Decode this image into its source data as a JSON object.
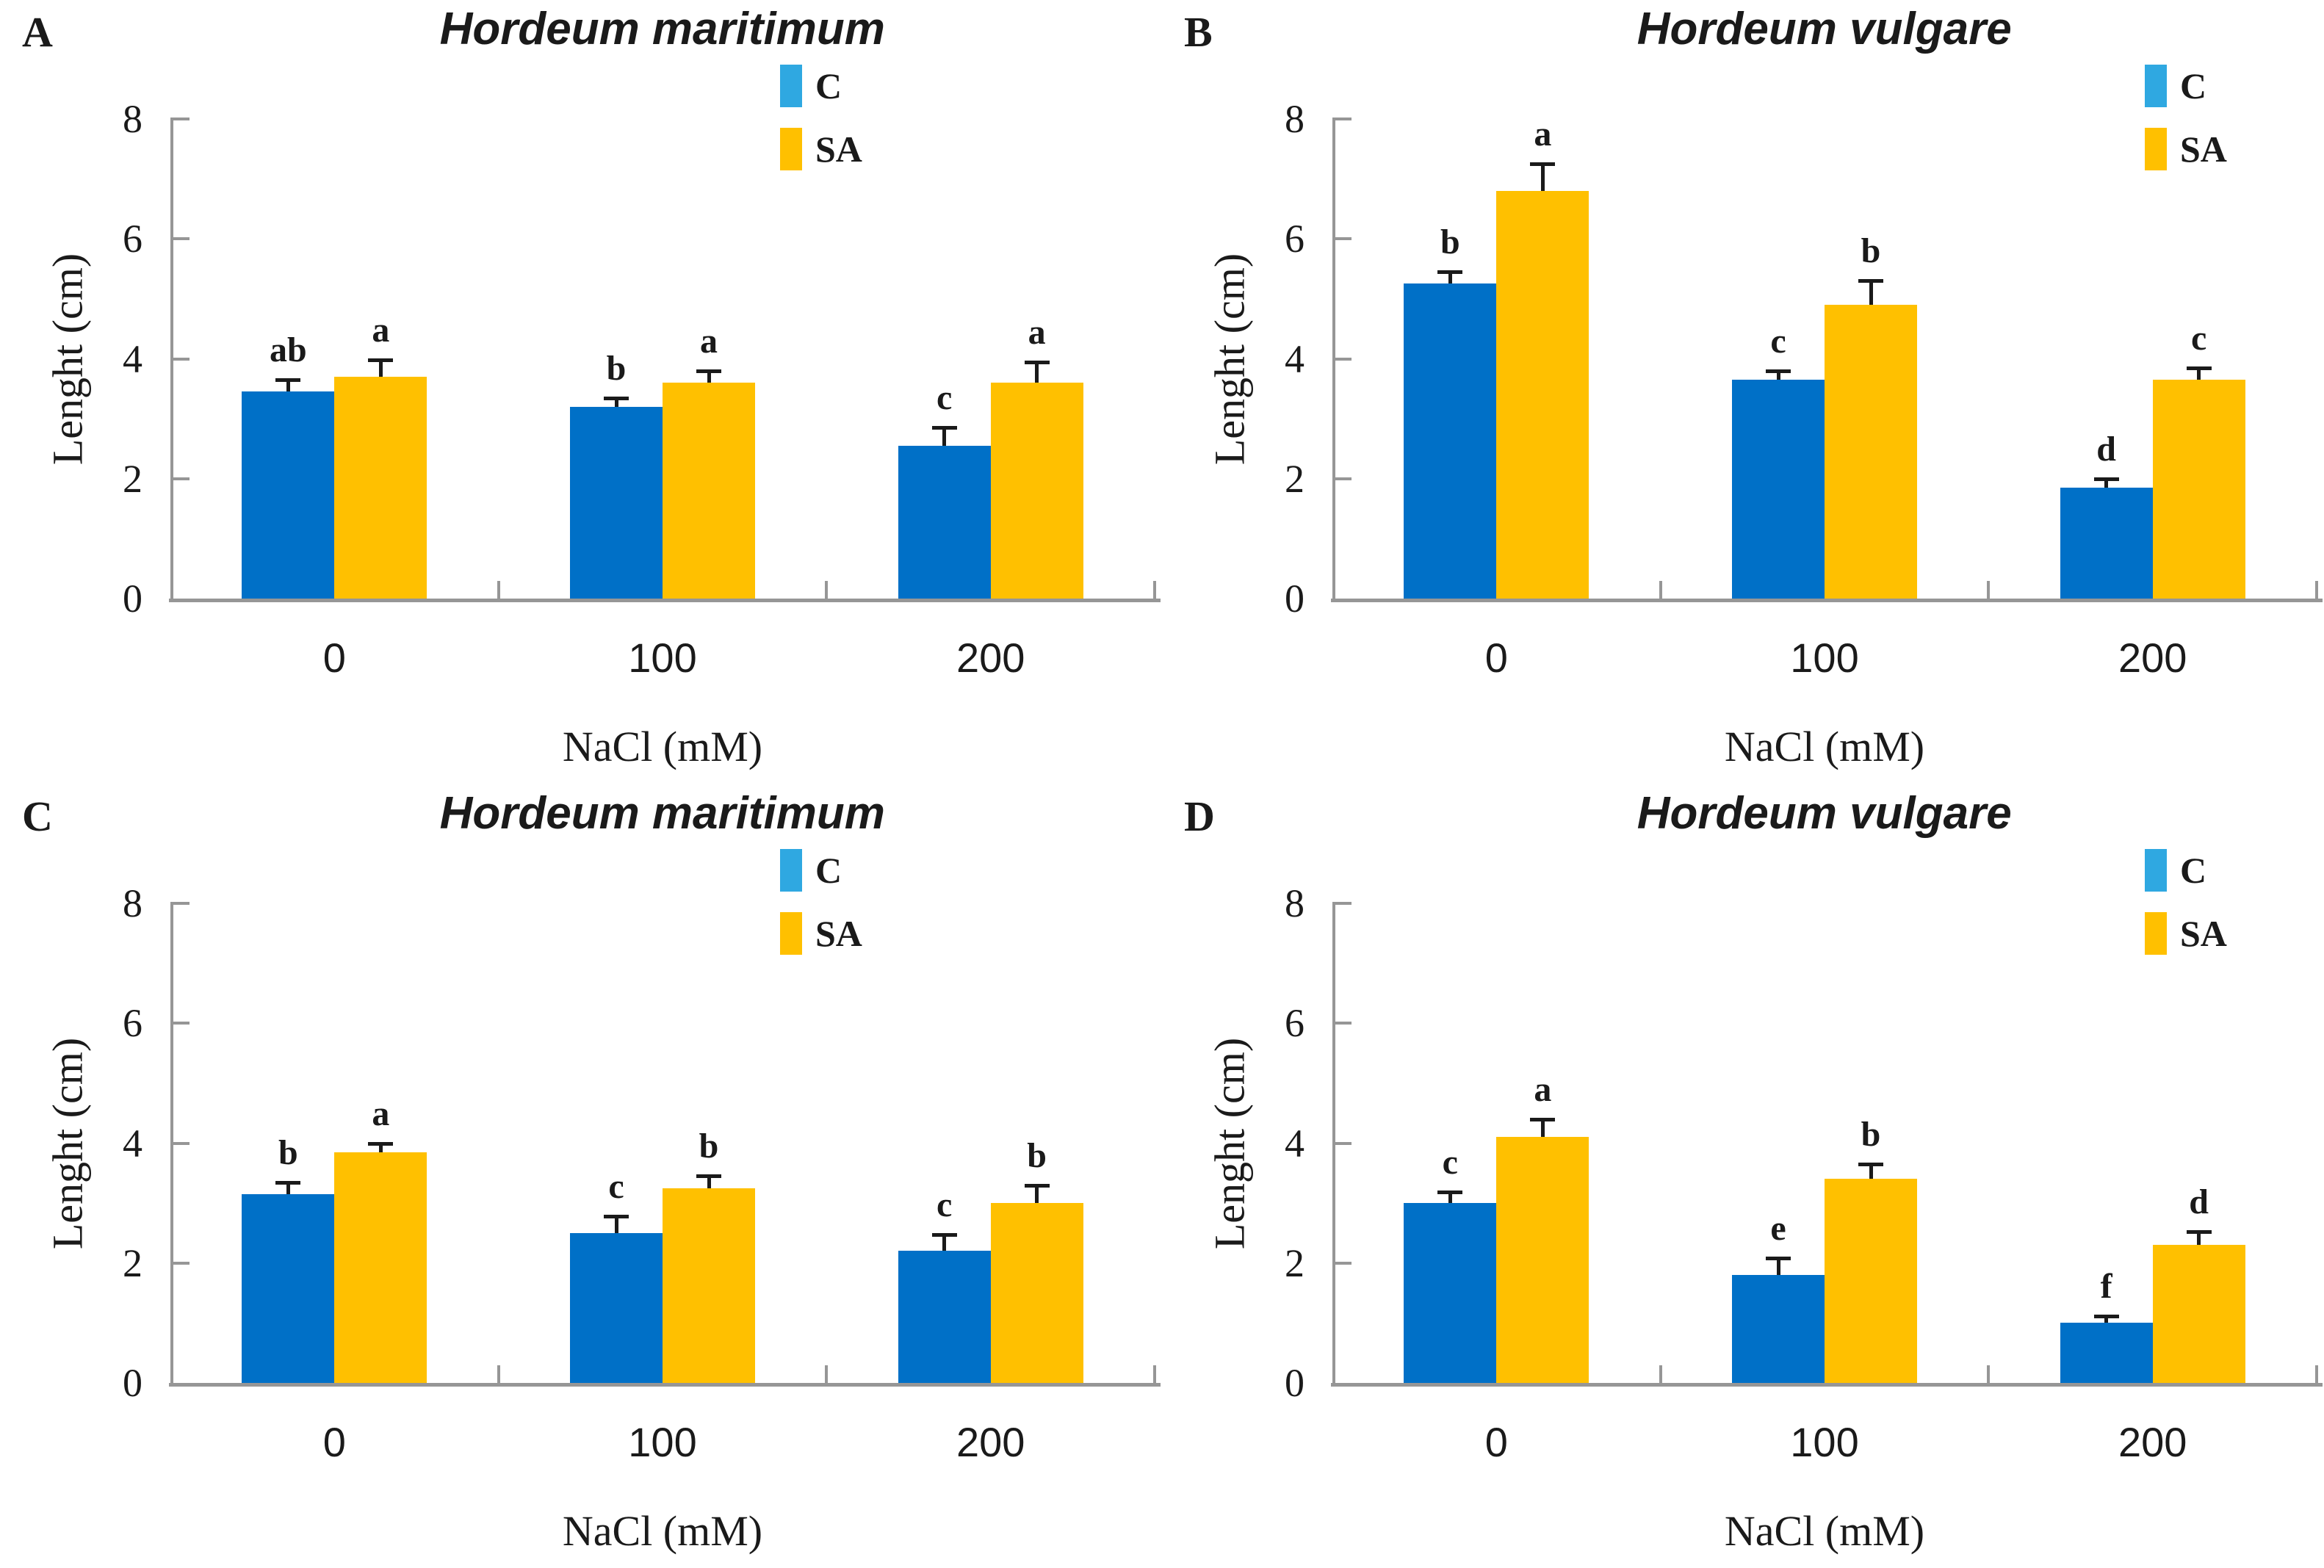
{
  "figure": {
    "description": "Four-panel grouped bar figure comparing shoot/root length of two barley species under NaCl treatments with and without salicylic acid"
  },
  "colors": {
    "bar_c": "#0070C7",
    "bar_sa": "#FFC000",
    "legend_c": "#2FA8E1",
    "legend_sa": "#FFC000",
    "axis": "#969696",
    "error_bar": "#1a1a1a",
    "text": "#1a1a1a"
  },
  "legend": {
    "items": [
      {
        "label": "C",
        "color": "#2FA8E1"
      },
      {
        "label": "SA",
        "color": "#FFC000"
      }
    ]
  },
  "chart_data": [
    {
      "panel_label": "A",
      "type": "bar",
      "title": "Hordeum maritimum",
      "xlabel": "NaCl (mM)",
      "ylabel": "Lenght (cm)",
      "ylim": [
        0,
        8
      ],
      "yticks": [
        0,
        2,
        4,
        6,
        8
      ],
      "categories": [
        "0",
        "100",
        "200"
      ],
      "grid": false,
      "legend_position": "top-right",
      "series": [
        {
          "name": "C",
          "color": "#0070C7",
          "values": [
            3.45,
            3.2,
            2.55
          ],
          "errors": [
            0.2,
            0.15,
            0.3
          ],
          "sig_letters": [
            "ab",
            "b",
            "c"
          ]
        },
        {
          "name": "SA",
          "color": "#FFC000",
          "values": [
            3.7,
            3.6,
            3.6
          ],
          "errors": [
            0.28,
            0.2,
            0.35
          ],
          "sig_letters": [
            "a",
            "a",
            "a"
          ]
        }
      ]
    },
    {
      "panel_label": "B",
      "type": "bar",
      "title": "Hordeum vulgare",
      "xlabel": "NaCl (mM)",
      "ylabel": "Lenght (cm)",
      "ylim": [
        0,
        8
      ],
      "yticks": [
        0,
        2,
        4,
        6,
        8
      ],
      "categories": [
        "0",
        "100",
        "200"
      ],
      "grid": false,
      "legend_position": "top-right",
      "series": [
        {
          "name": "C",
          "color": "#0070C7",
          "values": [
            5.25,
            3.65,
            1.85
          ],
          "errors": [
            0.2,
            0.15,
            0.15
          ],
          "sig_letters": [
            "b",
            "c",
            "d"
          ]
        },
        {
          "name": "SA",
          "color": "#FFC000",
          "values": [
            6.8,
            4.9,
            3.65
          ],
          "errors": [
            0.45,
            0.4,
            0.2
          ],
          "sig_letters": [
            "a",
            "b",
            "c"
          ]
        }
      ]
    },
    {
      "panel_label": "C",
      "type": "bar",
      "title": "Hordeum maritimum",
      "xlabel": "NaCl (mM)",
      "ylabel": "Lenght (cm)",
      "ylim": [
        0,
        8
      ],
      "yticks": [
        0,
        2,
        4,
        6,
        8
      ],
      "categories": [
        "0",
        "100",
        "200"
      ],
      "grid": false,
      "legend_position": "top-right",
      "series": [
        {
          "name": "C",
          "color": "#0070C7",
          "values": [
            3.15,
            2.5,
            2.2
          ],
          "errors": [
            0.2,
            0.28,
            0.28
          ],
          "sig_letters": [
            "b",
            "c",
            "c"
          ]
        },
        {
          "name": "SA",
          "color": "#FFC000",
          "values": [
            3.85,
            3.25,
            3.0
          ],
          "errors": [
            0.15,
            0.2,
            0.3
          ],
          "sig_letters": [
            "a",
            "b",
            "b"
          ]
        }
      ]
    },
    {
      "panel_label": "D",
      "type": "bar",
      "title": "Hordeum vulgare",
      "xlabel": "NaCl (mM)",
      "ylabel": "Lenght (cm)",
      "ylim": [
        0,
        8
      ],
      "yticks": [
        0,
        2,
        4,
        6,
        8
      ],
      "categories": [
        "0",
        "100",
        "200"
      ],
      "grid": false,
      "legend_position": "top-right",
      "series": [
        {
          "name": "C",
          "color": "#0070C7",
          "values": [
            3.0,
            1.8,
            1.0
          ],
          "errors": [
            0.18,
            0.28,
            0.12
          ],
          "sig_letters": [
            "c",
            "e",
            "f"
          ]
        },
        {
          "name": "SA",
          "color": "#FFC000",
          "values": [
            4.1,
            3.4,
            2.3
          ],
          "errors": [
            0.3,
            0.25,
            0.22
          ],
          "sig_letters": [
            "a",
            "b",
            "d"
          ]
        }
      ]
    }
  ]
}
